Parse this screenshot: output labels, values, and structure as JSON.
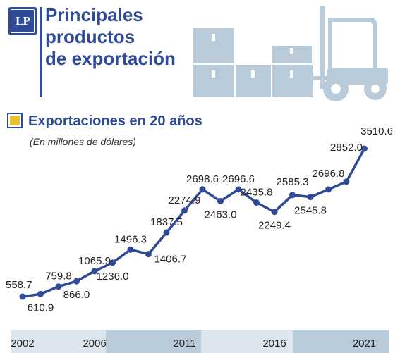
{
  "header": {
    "logo_text": "LP",
    "title_line1": "Principales",
    "title_line2": "productos",
    "title_line3": "de exportación"
  },
  "subtitle": "Exportaciones en 20 años",
  "units": "(En millones de dólares)",
  "colors": {
    "accent": "#2f4a97",
    "marker": "#e8c032",
    "illustration": "#b9cbd9",
    "axis_band_light": "#dde5ee",
    "axis_band_dark": "#b9cbd9"
  },
  "chart_data": {
    "type": "line",
    "x": [
      2002,
      2003,
      2004,
      2005,
      2006,
      2007,
      2008,
      2009,
      2010,
      2011,
      2012,
      2013,
      2014,
      2015,
      2016,
      2017,
      2018,
      2019,
      2020,
      2021
    ],
    "series": [
      {
        "values": [
          558.7,
          610.9,
          759.8,
          866.0,
          1065.9,
          1236.0,
          1496.3,
          1406.7,
          1837.5,
          2274.9,
          2698.6,
          2463.0,
          2696.6,
          2435.8,
          2249.4,
          2585.3,
          2545.8,
          2696.8,
          2852.0,
          3510.6
        ]
      }
    ],
    "data_labels": [
      "558.7",
      "610.9",
      "759.8",
      "866.0",
      "1065.9",
      "1236.0",
      "1496.3",
      "1406.7",
      "1837.5",
      "2274.9",
      "2698.6",
      "2463.0",
      "2696.6",
      "2435.8",
      "2249.4",
      "2585.3",
      "2545.8",
      "2696.8",
      "2852.0",
      "3510.6"
    ],
    "x_tick_labels": [
      "2002",
      "2006",
      "2011",
      "2016",
      "2021"
    ],
    "title": "Exportaciones en 20 años",
    "xlabel": "",
    "ylabel": "",
    "grid": false,
    "legend": "none"
  }
}
